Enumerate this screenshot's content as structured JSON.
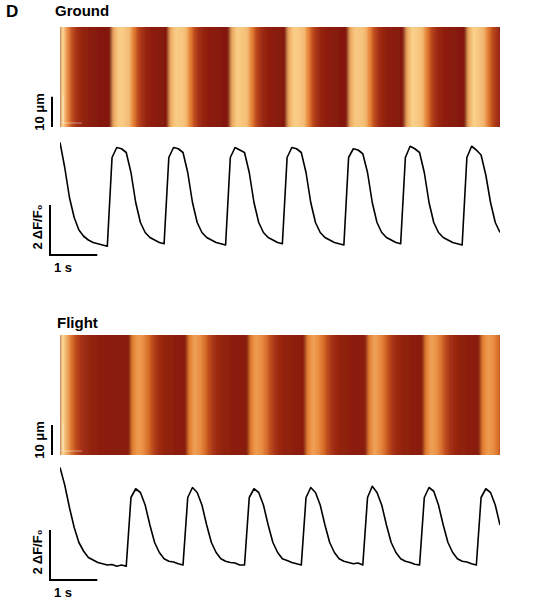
{
  "panel": "D",
  "chart_data": [
    {
      "type": "line",
      "title": "Ground",
      "color": "#000000",
      "tick_labels": false,
      "xlim": [
        0,
        9.3
      ],
      "ylim": [
        -0.3,
        4.3
      ],
      "space_lim": [
        0,
        33
      ],
      "scale_bars": [
        {
          "value": 1,
          "label": "1 s"
        },
        {
          "value": 2,
          "label": "2 ΔF/F₀"
        },
        {
          "value": 10,
          "label": "10 μm"
        }
      ],
      "x": [
        0,
        0.1,
        0.2,
        0.3,
        0.4,
        0.5,
        0.6,
        0.7,
        0.8,
        0.9,
        1.0,
        1.1,
        1.2,
        1.3,
        1.4,
        1.5,
        1.6,
        1.7,
        1.8,
        1.9,
        2.0,
        2.1,
        2.2,
        2.3,
        2.4,
        2.5,
        2.6,
        2.7,
        2.8,
        2.9,
        3.0,
        3.1,
        3.2,
        3.3,
        3.4,
        3.5,
        3.6,
        3.7,
        3.8,
        3.9,
        4.0,
        4.1,
        4.2,
        4.3,
        4.4,
        4.5,
        4.6,
        4.7,
        4.8,
        4.9,
        5.0,
        5.1,
        5.2,
        5.3,
        5.4,
        5.5,
        5.6,
        5.7,
        5.8,
        5.9,
        6.0,
        6.1,
        6.2,
        6.3,
        6.4,
        6.5,
        6.6,
        6.7,
        6.8,
        6.9,
        7.0,
        7.1,
        7.2,
        7.3,
        7.4,
        7.5,
        7.6,
        7.7,
        7.8,
        7.9,
        8.0,
        8.1,
        8.2,
        8.3,
        8.4,
        8.5,
        8.6,
        8.7,
        8.8,
        8.9,
        9.0,
        9.1,
        9.2,
        9.3
      ],
      "values": [
        4.2,
        3.2,
        2.0,
        1.2,
        0.7,
        0.45,
        0.3,
        0.2,
        0.15,
        0.1,
        0.05,
        3.6,
        4.0,
        3.95,
        3.8,
        3.0,
        1.8,
        1.0,
        0.6,
        0.4,
        0.3,
        0.2,
        0.15,
        3.6,
        4.0,
        3.95,
        3.8,
        3.0,
        1.8,
        1.0,
        0.6,
        0.4,
        0.3,
        0.2,
        0.15,
        0.1,
        3.6,
        4.0,
        3.9,
        3.8,
        3.0,
        1.8,
        1.0,
        0.6,
        0.4,
        0.3,
        0.2,
        0.15,
        3.6,
        4.0,
        3.95,
        3.8,
        3.0,
        1.8,
        1.0,
        0.6,
        0.4,
        0.3,
        0.2,
        0.15,
        0.1,
        3.6,
        3.95,
        3.9,
        3.75,
        3.0,
        1.8,
        1.0,
        0.6,
        0.4,
        0.3,
        0.2,
        0.15,
        3.6,
        4.05,
        3.95,
        3.8,
        3.0,
        1.8,
        1.0,
        0.6,
        0.4,
        0.3,
        0.2,
        0.15,
        0.1,
        3.6,
        4.05,
        3.9,
        3.7,
        2.9,
        1.8,
        1.0,
        0.6
      ]
    },
    {
      "type": "line",
      "title": "Flight",
      "color": "#000000",
      "tick_labels": false,
      "xlim": [
        0,
        9.3
      ],
      "ylim": [
        -0.3,
        4.3
      ],
      "space_lim": [
        0,
        40
      ],
      "scale_bars": [
        {
          "value": 1,
          "label": "1 s"
        },
        {
          "value": 2,
          "label": "2 ΔF/F₀"
        },
        {
          "value": 10,
          "label": "10 μm"
        }
      ],
      "x": [
        0,
        0.1,
        0.2,
        0.3,
        0.4,
        0.5,
        0.6,
        0.7,
        0.8,
        0.9,
        1.0,
        1.1,
        1.2,
        1.3,
        1.4,
        1.5,
        1.6,
        1.7,
        1.8,
        1.9,
        2.0,
        2.1,
        2.2,
        2.3,
        2.4,
        2.5,
        2.6,
        2.7,
        2.8,
        2.9,
        3.0,
        3.1,
        3.2,
        3.3,
        3.4,
        3.5,
        3.6,
        3.7,
        3.8,
        3.9,
        4.0,
        4.1,
        4.2,
        4.3,
        4.4,
        4.5,
        4.6,
        4.7,
        4.8,
        4.9,
        5.0,
        5.1,
        5.2,
        5.3,
        5.4,
        5.5,
        5.6,
        5.7,
        5.8,
        5.9,
        6.0,
        6.1,
        6.2,
        6.3,
        6.4,
        6.5,
        6.6,
        6.7,
        6.8,
        6.9,
        7.0,
        7.1,
        7.2,
        7.3,
        7.4,
        7.5,
        7.6,
        7.7,
        7.8,
        7.9,
        8.0,
        8.1,
        8.2,
        8.3,
        8.4,
        8.5,
        8.6,
        8.7,
        8.8,
        8.9,
        9.0,
        9.1,
        9.2,
        9.3
      ],
      "values": [
        4.2,
        3.5,
        2.6,
        1.8,
        1.2,
        0.85,
        0.6,
        0.5,
        0.4,
        0.35,
        0.3,
        0.32,
        0.25,
        0.3,
        0.25,
        3.0,
        3.35,
        3.2,
        2.7,
        1.9,
        1.2,
        0.8,
        0.55,
        0.45,
        0.42,
        0.35,
        0.3,
        3.0,
        3.4,
        3.2,
        2.7,
        1.9,
        1.2,
        0.8,
        0.55,
        0.45,
        0.4,
        0.38,
        0.3,
        0.3,
        3.0,
        3.35,
        3.2,
        2.7,
        1.9,
        1.2,
        0.8,
        0.55,
        0.48,
        0.4,
        0.35,
        0.3,
        3.0,
        3.4,
        3.2,
        2.7,
        1.9,
        1.2,
        0.8,
        0.55,
        0.45,
        0.4,
        0.35,
        0.38,
        0.3,
        3.0,
        3.45,
        3.2,
        2.7,
        1.9,
        1.2,
        0.8,
        0.55,
        0.45,
        0.4,
        0.33,
        0.3,
        3.0,
        3.4,
        3.25,
        2.7,
        1.9,
        1.2,
        0.8,
        0.55,
        0.45,
        0.42,
        0.35,
        0.3,
        3.0,
        3.35,
        3.2,
        2.7,
        1.9
      ]
    }
  ]
}
